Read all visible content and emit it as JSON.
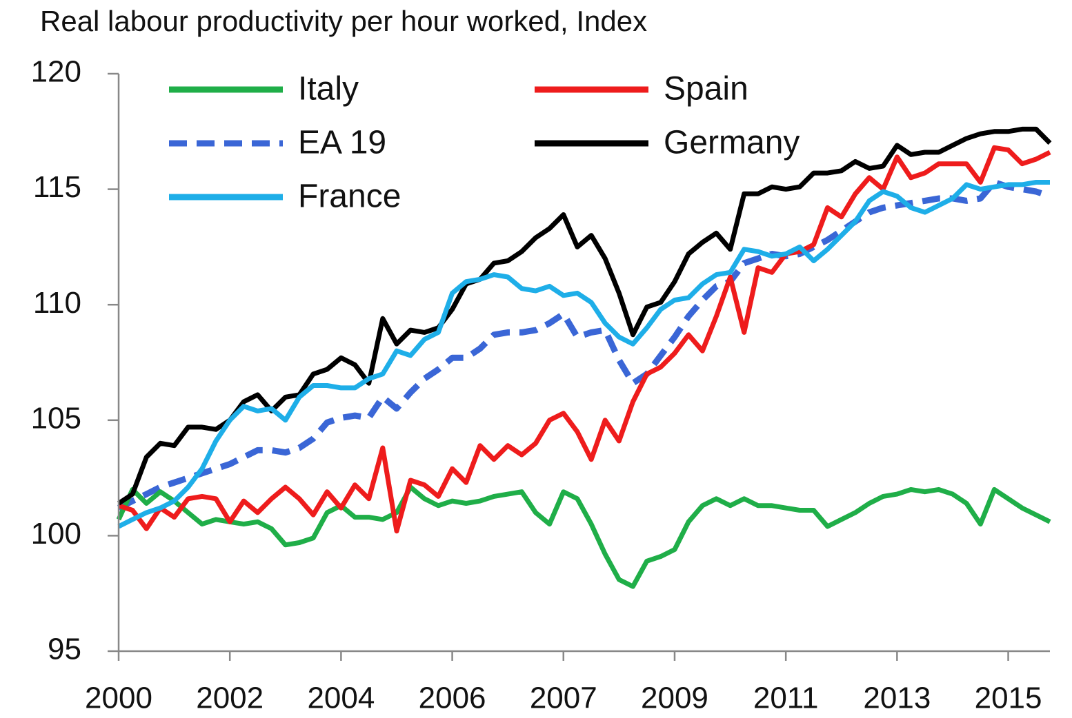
{
  "chart_data": {
    "type": "line",
    "title": "Real labour productivity per hour worked, Index",
    "categories": [
      "2000",
      null,
      null,
      null,
      null,
      null,
      null,
      null,
      "2002",
      null,
      null,
      null,
      null,
      null,
      null,
      null,
      "2004",
      null,
      null,
      null,
      null,
      null,
      null,
      null,
      "2006",
      null,
      null,
      null,
      null,
      null,
      null,
      null,
      "2007",
      null,
      null,
      null,
      null,
      null,
      null,
      null,
      "2009",
      null,
      null,
      null,
      null,
      null,
      null,
      null,
      "2011",
      null,
      null,
      null,
      null,
      null,
      null,
      null,
      "2013",
      null,
      null,
      null,
      null,
      null,
      null,
      null,
      "2015",
      null,
      null,
      null
    ],
    "ylim": [
      95,
      120
    ],
    "yticks": [
      95,
      100,
      105,
      110,
      115,
      120
    ],
    "grid": false,
    "legend": "top-left",
    "series": [
      {
        "name": "Italy",
        "color": "#1fae48",
        "line_style": "solid",
        "values": [
          100.7,
          102.0,
          101.4,
          101.9,
          101.5,
          101.0,
          100.5,
          100.7,
          100.6,
          100.5,
          100.6,
          100.3,
          99.6,
          99.7,
          99.9,
          101.0,
          101.3,
          100.8,
          100.8,
          100.7,
          101.0,
          102.1,
          101.6,
          101.3,
          101.5,
          101.4,
          101.5,
          101.7,
          101.8,
          101.9,
          101.0,
          100.5,
          101.9,
          101.6,
          100.5,
          99.2,
          98.1,
          97.8,
          98.9,
          99.1,
          99.4,
          100.6,
          101.3,
          101.6,
          101.3,
          101.6,
          101.3,
          101.3,
          101.2,
          101.1,
          101.1,
          100.4,
          100.7,
          101.0,
          101.4,
          101.7,
          101.8,
          102.0,
          101.9,
          102.0,
          101.8,
          101.4,
          100.5,
          102.0,
          101.6,
          101.2,
          100.9,
          100.6
        ]
      },
      {
        "name": "Spain",
        "color": "#ee1c1c",
        "line_style": "solid",
        "values": [
          101.3,
          101.1,
          100.3,
          101.2,
          100.8,
          101.6,
          101.7,
          101.6,
          100.6,
          101.5,
          101.0,
          101.6,
          102.1,
          101.6,
          100.9,
          101.9,
          101.2,
          102.2,
          101.6,
          103.8,
          100.2,
          102.4,
          102.2,
          101.7,
          102.9,
          102.3,
          103.9,
          103.3,
          103.9,
          103.5,
          104.0,
          105.0,
          105.3,
          104.5,
          103.3,
          105.0,
          104.1,
          105.8,
          107.0,
          107.3,
          107.9,
          108.7,
          108.0,
          109.5,
          111.2,
          108.8,
          111.6,
          111.4,
          112.2,
          112.3,
          112.6,
          114.2,
          113.8,
          114.8,
          115.5,
          115.0,
          116.4,
          115.5,
          115.7,
          116.1,
          116.1,
          116.1,
          115.3,
          116.8,
          116.7,
          116.1,
          116.3,
          116.6
        ]
      },
      {
        "name": "EA 19",
        "color": "#3a66d6",
        "line_style": "dashed",
        "values": [
          101.2,
          101.5,
          101.8,
          102.1,
          102.3,
          102.5,
          102.7,
          102.9,
          103.1,
          103.4,
          103.7,
          103.7,
          103.6,
          103.8,
          104.2,
          104.9,
          105.1,
          105.2,
          105.1,
          106.0,
          105.5,
          106.2,
          106.8,
          107.2,
          107.7,
          107.7,
          108.1,
          108.7,
          108.8,
          108.8,
          108.9,
          109.2,
          109.6,
          108.6,
          108.8,
          108.9,
          107.6,
          106.6,
          107.0,
          107.8,
          108.6,
          109.5,
          110.2,
          110.8,
          111.0,
          111.8,
          112.0,
          112.2,
          112.1,
          112.2,
          112.5,
          112.8,
          113.2,
          113.6,
          114.0,
          114.2,
          114.3,
          114.4,
          114.5,
          114.6,
          114.6,
          114.5,
          114.6,
          115.3,
          115.1,
          115.0,
          114.9,
          114.7
        ]
      },
      {
        "name": "Germany",
        "color": "#000000",
        "line_style": "solid",
        "values": [
          101.4,
          101.8,
          103.4,
          104.0,
          103.9,
          104.7,
          104.7,
          104.6,
          105.0,
          105.8,
          106.1,
          105.4,
          106.0,
          106.1,
          107.0,
          107.2,
          107.7,
          107.4,
          106.6,
          109.4,
          108.3,
          108.9,
          108.8,
          109.0,
          109.8,
          110.9,
          111.1,
          111.8,
          111.9,
          112.3,
          112.9,
          113.3,
          113.9,
          112.5,
          113.0,
          112.0,
          110.5,
          108.7,
          109.9,
          110.1,
          111.0,
          112.2,
          112.7,
          113.1,
          112.4,
          114.8,
          114.8,
          115.1,
          115.0,
          115.1,
          115.7,
          115.7,
          115.8,
          116.2,
          115.9,
          116.0,
          116.9,
          116.5,
          116.6,
          116.6,
          116.9,
          117.2,
          117.4,
          117.5,
          117.5,
          117.6,
          117.6,
          117.0
        ]
      },
      {
        "name": "France",
        "color": "#1eaee8",
        "line_style": "solid",
        "values": [
          100.4,
          100.7,
          101.0,
          101.2,
          101.5,
          102.1,
          102.9,
          104.1,
          105.0,
          105.6,
          105.4,
          105.5,
          105.0,
          106.0,
          106.5,
          106.5,
          106.4,
          106.4,
          106.8,
          107.0,
          108.0,
          107.8,
          108.5,
          108.8,
          110.5,
          111.0,
          111.1,
          111.3,
          111.2,
          110.7,
          110.6,
          110.8,
          110.4,
          110.5,
          110.1,
          109.2,
          108.6,
          108.3,
          109.0,
          109.8,
          110.2,
          110.3,
          110.9,
          111.3,
          111.4,
          112.4,
          112.3,
          112.1,
          112.2,
          112.5,
          111.9,
          112.4,
          113.0,
          113.6,
          114.5,
          114.9,
          114.7,
          114.2,
          114.0,
          114.3,
          114.6,
          115.2,
          115.0,
          115.1,
          115.2,
          115.2,
          115.3,
          115.3
        ]
      }
    ]
  }
}
